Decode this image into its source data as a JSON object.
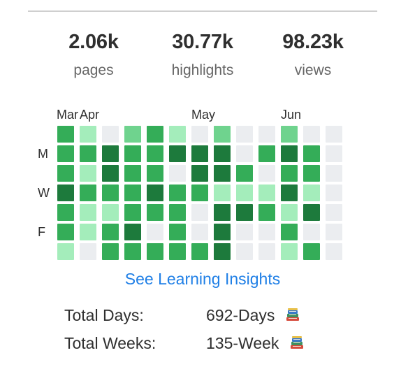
{
  "stats": [
    {
      "value": "2.06k",
      "label": "pages"
    },
    {
      "value": "30.77k",
      "label": "highlights"
    },
    {
      "value": "98.23k",
      "label": "views"
    }
  ],
  "heatmap": {
    "months": [
      "Mar",
      "Apr",
      "May",
      "Jun"
    ],
    "day_labels": [
      "M",
      "W",
      "F"
    ],
    "levels": [
      [
        3,
        1,
        0,
        2,
        3,
        1,
        0,
        2,
        0,
        0,
        2,
        0,
        0
      ],
      [
        3,
        3,
        4,
        3,
        3,
        4,
        4,
        4,
        0,
        3,
        4,
        3,
        0
      ],
      [
        3,
        1,
        4,
        3,
        3,
        0,
        4,
        4,
        3,
        0,
        3,
        3,
        0
      ],
      [
        4,
        3,
        3,
        3,
        4,
        3,
        3,
        1,
        1,
        1,
        4,
        1,
        0
      ],
      [
        3,
        1,
        1,
        3,
        3,
        3,
        0,
        4,
        4,
        3,
        1,
        4,
        0
      ],
      [
        3,
        1,
        3,
        4,
        0,
        3,
        0,
        4,
        0,
        0,
        3,
        0,
        0
      ],
      [
        1,
        0,
        3,
        3,
        3,
        3,
        3,
        4,
        0,
        0,
        1,
        3,
        0
      ]
    ],
    "colors": {
      "0": "#ebedf0",
      "1": "#a4edbb",
      "2": "#6fd38e",
      "3": "#34ad58",
      "4": "#1d7a3c"
    }
  },
  "insights_link": "See Learning Insights",
  "totals": [
    {
      "label": "Total Days:",
      "value": "692-Days",
      "icon": "books-icon"
    },
    {
      "label": "Total Weeks:",
      "value": "135-Week",
      "icon": "books-icon"
    }
  ]
}
